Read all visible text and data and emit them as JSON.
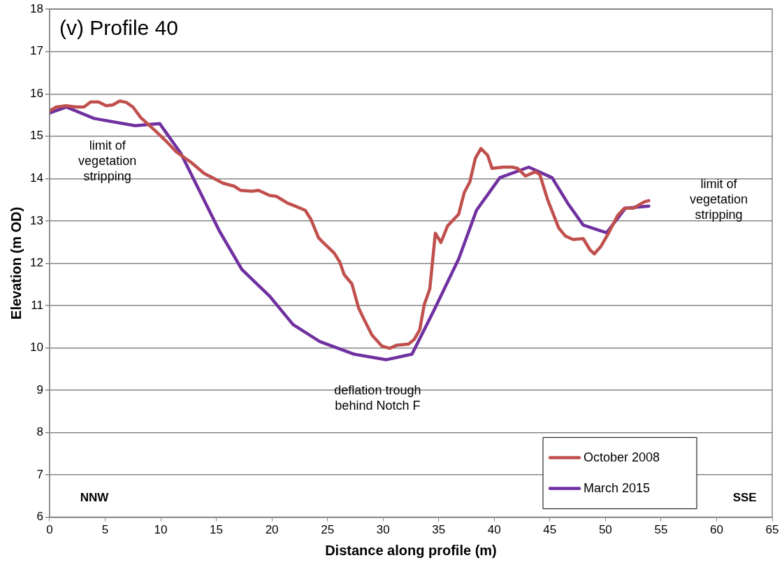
{
  "chart_data": {
    "type": "line",
    "title": "(v) Profile 40",
    "xlabel": "Distance along profile (m)",
    "ylabel": "Elevation (m OD)",
    "xlim": [
      0,
      65
    ],
    "xticks": [
      0,
      5,
      10,
      15,
      20,
      25,
      30,
      35,
      40,
      45,
      50,
      55,
      60,
      65
    ],
    "ylim": [
      6,
      18
    ],
    "yticks": [
      6,
      7,
      8,
      9,
      10,
      11,
      12,
      13,
      14,
      15,
      16,
      17,
      18
    ],
    "grid": "y",
    "legend": "bottom right",
    "marker": "none",
    "line_style": "solid",
    "annotations": [
      "limit of\nvegetation\nstripping",
      "limit of\nvegetation\nstripping",
      "deflation trough\nbehind Notch F",
      "NNW",
      "SSE"
    ],
    "series": [
      {
        "name": "October 2008",
        "color": "#c0504d",
        "x": [
          0,
          0.6,
          1.5,
          2.4,
          3.1,
          3.7,
          4.4,
          5.1,
          5.7,
          6.3,
          6.9,
          7.5,
          8.2,
          9.5,
          10.5,
          11.4,
          12.7,
          13.9,
          14.8,
          15.6,
          16.6,
          17.2,
          18.2,
          18.8,
          19.8,
          20.4,
          21.4,
          22.0,
          23.0,
          23.5,
          24.2,
          24.6,
          25.6,
          26.1,
          26.5,
          27.2,
          27.8,
          28.2,
          29.0,
          29.9,
          30.6,
          31.2,
          32.3,
          32.8,
          33.3,
          33.7,
          34.2,
          34.7,
          35.2,
          35.8,
          36.8,
          37.3,
          37.8,
          38.3,
          38.8,
          39.4,
          39.8,
          40.8,
          41.6,
          42.1,
          42.8,
          43.7,
          44.1,
          44.8,
          45.8,
          46.4,
          47.1,
          48.0,
          48.6,
          49.0,
          49.6,
          50.3,
          51.1,
          51.7,
          52.5,
          53.5,
          53.9
        ],
        "values": [
          15.6,
          15.69,
          15.72,
          15.69,
          15.69,
          15.81,
          15.81,
          15.72,
          15.74,
          15.83,
          15.8,
          15.69,
          15.44,
          15.13,
          14.88,
          14.63,
          14.39,
          14.12,
          14.0,
          13.89,
          13.82,
          13.72,
          13.7,
          13.72,
          13.6,
          13.58,
          13.42,
          13.36,
          13.25,
          13.04,
          12.6,
          12.49,
          12.24,
          12.03,
          11.73,
          11.51,
          10.94,
          10.72,
          10.3,
          10.04,
          9.99,
          10.06,
          10.09,
          10.2,
          10.43,
          11.02,
          11.39,
          12.71,
          12.49,
          12.88,
          13.16,
          13.67,
          13.92,
          14.48,
          14.71,
          14.55,
          14.24,
          14.27,
          14.27,
          14.24,
          14.06,
          14.16,
          14.09,
          13.5,
          12.83,
          12.64,
          12.56,
          12.58,
          12.32,
          12.22,
          12.4,
          12.72,
          13.13,
          13.3,
          13.3,
          13.45,
          13.48
        ]
      },
      {
        "name": "March 2015",
        "color": "#7030a0",
        "x": [
          0,
          1.5,
          4,
          7.7,
          9.9,
          11.8,
          15.3,
          17.3,
          19.8,
          21.9,
          24.3,
          27.4,
          30.3,
          32.6,
          34.6,
          36.8,
          38.4,
          40.5,
          43.1,
          45.2,
          46.6,
          48.0,
          50.1,
          51.8,
          53.9
        ],
        "values": [
          15.55,
          15.69,
          15.42,
          15.25,
          15.3,
          14.6,
          12.75,
          11.85,
          11.22,
          10.55,
          10.15,
          9.85,
          9.72,
          9.85,
          10.9,
          12.1,
          13.25,
          14.02,
          14.27,
          14.02,
          13.42,
          12.9,
          12.72,
          13.3,
          13.35
        ]
      }
    ]
  }
}
